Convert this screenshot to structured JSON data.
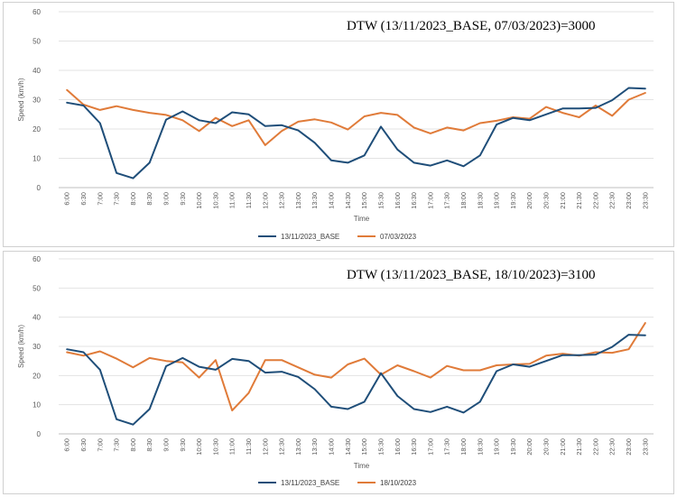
{
  "chart_data": [
    {
      "type": "line",
      "title": "DTW (13/11/2023_BASE, 07/03/2023)=3000",
      "xlabel": "Time",
      "ylabel": "Speed (km/h)",
      "ylim": [
        0,
        60
      ],
      "yticks": [
        "0",
        "10",
        "20",
        "30",
        "40",
        "50",
        "60"
      ],
      "categories": [
        "6:00",
        "6:30",
        "7:00",
        "7:30",
        "8:00",
        "8:30",
        "9:00",
        "9:30",
        "10:00",
        "10:30",
        "11:00",
        "11:30",
        "12:00",
        "12:30",
        "13:00",
        "13:30",
        "14:00",
        "14:30",
        "15:00",
        "15:30",
        "16:00",
        "16:30",
        "17:00",
        "17:30",
        "18:00",
        "18:30",
        "19:00",
        "19:30",
        "20:00",
        "20:30",
        "21:00",
        "21:30",
        "22:00",
        "22:30",
        "23:00",
        "23:30"
      ],
      "series": [
        {
          "name": "13/11/2023_BASE",
          "color": "#1f4e79",
          "values": [
            29,
            28,
            22,
            5,
            3.2,
            8.5,
            23.2,
            26,
            23,
            22,
            25.7,
            25,
            21,
            21.3,
            19.5,
            15.3,
            9.3,
            8.5,
            11,
            20.8,
            13,
            8.5,
            7.5,
            9.3,
            7.3,
            11,
            21.5,
            23.8,
            23,
            25,
            27,
            27,
            27.2,
            29.8,
            34,
            33.8
          ]
        },
        {
          "name": "07/03/2023",
          "color": "#e07b39",
          "values": [
            33.3,
            28.3,
            26.5,
            27.8,
            26.5,
            25.5,
            24.8,
            23,
            19.3,
            23.8,
            21,
            23,
            14.5,
            19.3,
            22.5,
            23.3,
            22.2,
            19.8,
            24.3,
            25.5,
            24.8,
            20.5,
            18.5,
            20.5,
            19.5,
            22,
            22.8,
            24,
            23.5,
            27.5,
            25.5,
            24,
            28,
            24.5,
            30,
            32.3
          ]
        }
      ]
    },
    {
      "type": "line",
      "title": "DTW (13/11/2023_BASE, 18/10/2023)=3100",
      "xlabel": "Time",
      "ylabel": "Speed (km/h)",
      "ylim": [
        0,
        60
      ],
      "yticks": [
        "0",
        "10",
        "20",
        "30",
        "40",
        "50",
        "60"
      ],
      "categories": [
        "6:00",
        "6:30",
        "7:00",
        "7:30",
        "8:00",
        "8:30",
        "9:00",
        "9:30",
        "10:00",
        "10:30",
        "11:00",
        "11:30",
        "12:00",
        "12:30",
        "13:00",
        "13:30",
        "14:00",
        "14:30",
        "15:00",
        "15:30",
        "16:00",
        "16:30",
        "17:00",
        "17:30",
        "18:00",
        "18:30",
        "19:00",
        "19:30",
        "20:00",
        "20:30",
        "21:00",
        "21:30",
        "22:00",
        "22:30",
        "23:00",
        "23:30"
      ],
      "series": [
        {
          "name": "13/11/2023_BASE",
          "color": "#1f4e79",
          "values": [
            29,
            28,
            22,
            5,
            3.2,
            8.5,
            23.2,
            26,
            23,
            22,
            25.7,
            25,
            21,
            21.3,
            19.5,
            15.3,
            9.3,
            8.5,
            11,
            20.8,
            13,
            8.5,
            7.5,
            9.3,
            7.3,
            11,
            21.5,
            23.8,
            23,
            25,
            27,
            27,
            27.2,
            29.8,
            34,
            33.8
          ]
        },
        {
          "name": "18/10/2023",
          "color": "#e07b39",
          "values": [
            28,
            26.8,
            28.3,
            25.8,
            22.8,
            26,
            25,
            24.5,
            19.3,
            25.3,
            8,
            14,
            25.3,
            25.3,
            22.8,
            20.3,
            19.3,
            23.8,
            25.8,
            20.3,
            23.5,
            21.5,
            19.3,
            23.3,
            21.8,
            21.8,
            23.5,
            23.8,
            24,
            26.8,
            27.5,
            26.8,
            28,
            27.8,
            29,
            38
          ]
        }
      ]
    }
  ]
}
